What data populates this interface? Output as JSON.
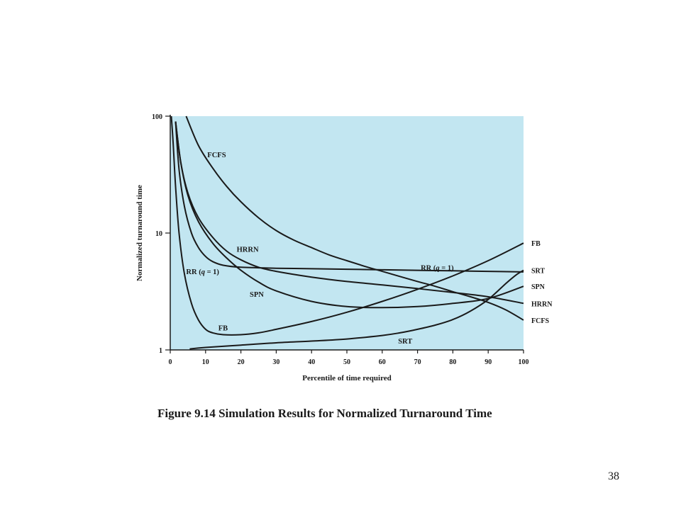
{
  "caption": "Figure 9.14  Simulation Results for Normalized Turnaround Time",
  "page_number": "38",
  "colors": {
    "plot_bg": "#c2e6f1",
    "line": "#1a1a1a"
  },
  "chart_data": {
    "type": "line",
    "xlabel": "Percentile of time required",
    "ylabel": "Normalized turnaround time",
    "xlim": [
      0,
      100
    ],
    "ylim": [
      1,
      100
    ],
    "yscale": "log",
    "x_ticks": [
      0,
      10,
      20,
      30,
      40,
      50,
      60,
      70,
      80,
      90,
      100
    ],
    "y_ticks": [
      1,
      10,
      100
    ],
    "grid": false,
    "series": [
      {
        "name": "FCFS",
        "x": [
          4.5,
          8,
          12,
          16,
          20,
          25,
          30,
          35,
          40,
          45,
          50,
          55,
          60,
          65,
          70,
          75,
          80,
          85,
          90,
          95,
          100
        ],
        "y": [
          100,
          56,
          36,
          25,
          18.5,
          13.5,
          10.5,
          8.7,
          7.5,
          6.5,
          5.8,
          5.2,
          4.7,
          4.25,
          3.85,
          3.5,
          3.15,
          2.85,
          2.55,
          2.2,
          1.8
        ]
      },
      {
        "name": "HRRN",
        "x": [
          1.5,
          3,
          5,
          8,
          12,
          16,
          20,
          25,
          30,
          40,
          50,
          60,
          70,
          80,
          90,
          100
        ],
        "y": [
          90,
          40,
          22,
          13.5,
          9.2,
          7.0,
          5.9,
          5.1,
          4.7,
          4.2,
          3.85,
          3.6,
          3.35,
          3.1,
          2.85,
          2.5
        ]
      },
      {
        "name": "RR (q = 1)",
        "x": [
          1.5,
          2.5,
          4,
          6,
          8,
          10,
          12,
          15,
          20,
          30,
          40,
          50,
          60,
          70,
          80,
          90,
          100
        ],
        "y": [
          90,
          35,
          17,
          10,
          7.5,
          6.3,
          5.7,
          5.3,
          5.1,
          5.0,
          4.95,
          4.9,
          4.85,
          4.8,
          4.75,
          4.7,
          4.65
        ]
      },
      {
        "name": "SPN",
        "x": [
          1.5,
          3,
          5,
          8,
          12,
          16,
          20,
          25,
          30,
          40,
          50,
          60,
          70,
          80,
          90,
          100
        ],
        "y": [
          90,
          40,
          21,
          12.5,
          8.2,
          6.1,
          4.8,
          3.8,
          3.2,
          2.6,
          2.35,
          2.3,
          2.35,
          2.5,
          2.75,
          3.5
        ]
      },
      {
        "name": "FB",
        "x": [
          0.3,
          0.8,
          1.5,
          2.5,
          4,
          6,
          8,
          10,
          12,
          15,
          20,
          25,
          30,
          40,
          50,
          60,
          70,
          80,
          90,
          100
        ],
        "y": [
          100,
          60,
          25,
          10,
          4.5,
          2.5,
          1.8,
          1.5,
          1.4,
          1.35,
          1.35,
          1.4,
          1.5,
          1.75,
          2.1,
          2.6,
          3.3,
          4.3,
          5.8,
          8.2
        ]
      },
      {
        "name": "SRT",
        "x": [
          5.5,
          10,
          20,
          30,
          40,
          50,
          60,
          65,
          70,
          75,
          80,
          85,
          90,
          95,
          98,
          100
        ],
        "y": [
          1.02,
          1.05,
          1.1,
          1.15,
          1.19,
          1.24,
          1.33,
          1.4,
          1.5,
          1.63,
          1.82,
          2.15,
          2.7,
          3.7,
          4.4,
          4.8
        ]
      }
    ],
    "annotations": [
      {
        "text": "FCFS",
        "x": 10.5,
        "y": 47
      },
      {
        "text": "HRRN",
        "x": 18.8,
        "y": 7.3
      },
      {
        "text": "RR (q = 1)",
        "x": 4.5,
        "y": 4.7
      },
      {
        "text": "SPN",
        "x": 22.5,
        "y": 3.02
      },
      {
        "text": "FB",
        "x": 13.6,
        "y": 1.55
      },
      {
        "text": "SRT",
        "x": 64.5,
        "y": 1.2
      },
      {
        "text": "RR (q = 1)",
        "x": 70.9,
        "y": 5.1
      }
    ],
    "end_labels": [
      "FB",
      "SRT",
      "SPN",
      "HRRN",
      "FCFS"
    ]
  }
}
